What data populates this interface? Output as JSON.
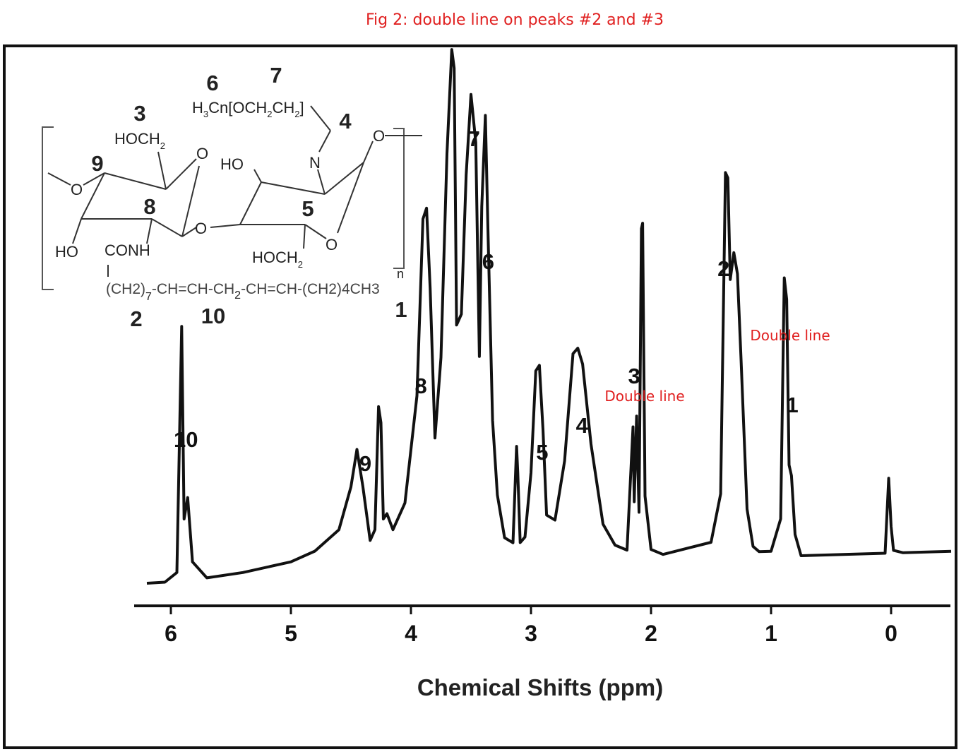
{
  "figure": {
    "title": "Fig 2: double line on peaks #2 and #3",
    "annotations": [
      {
        "text": "Double line",
        "near_peak": "3"
      },
      {
        "text": "Double line",
        "near_peak": "2"
      }
    ],
    "structure": {
      "labels": {
        "l6": "6",
        "l7": "7",
        "l3": "3",
        "l4": "4",
        "l9": "9",
        "l8": "8",
        "l5": "5",
        "l2": "2",
        "l10": "10",
        "l1": "1"
      },
      "texts": {
        "h3cn": "H",
        "h3cn_sub": "3",
        "cn_rest": "Cn[OCH",
        "sub2a": "2",
        "ch": "CH",
        "sub2b": "2",
        "bracket": "]",
        "hoch2_top": "HOCH",
        "hoch2_top_sub": "2",
        "o_ring1": "O",
        "ho_mid": "HO",
        "n_atom": "N",
        "o_end": "O",
        "o_left": "O",
        "ho_left": "HO",
        "conh": "CONH",
        "o_link": "O",
        "hoch2_bot": "HOCH",
        "hoch2_bot_sub": "2",
        "o_ring2": "O",
        "n_sub": "n",
        "chain_a": "(CH2)",
        "chain_sub7": "7",
        "chain_b": "-CH=CH-CH",
        "chain_sub2": "2",
        "chain_c": "-CH=CH-(CH2)4CH3"
      }
    }
  },
  "chart_data": {
    "type": "line",
    "title": "",
    "xlabel": "Chemical Shifts  (ppm)",
    "ylabel": "",
    "x_reversed": true,
    "xlim": [
      6.35,
      -0.5
    ],
    "ylim": [
      0,
      1.0
    ],
    "xticks": [
      6,
      5,
      4,
      3,
      2,
      1,
      0
    ],
    "xtick_labels": [
      "6",
      "5",
      "4",
      "3",
      "2",
      "1",
      "0"
    ],
    "grid": false,
    "legend": "none",
    "series": [
      {
        "x": [
          6.2,
          6.05,
          5.95,
          5.91,
          5.89,
          5.86,
          5.82,
          5.7,
          5.4,
          5.0,
          4.8,
          4.6,
          4.5,
          4.45,
          4.4,
          4.34,
          4.3,
          4.27,
          4.25,
          4.23,
          4.2,
          4.15,
          4.05,
          3.95,
          3.9,
          3.87,
          3.84,
          3.8,
          3.75,
          3.7,
          3.66,
          3.64,
          3.62,
          3.58,
          3.54,
          3.5,
          3.46,
          3.43,
          3.41,
          3.38,
          3.36,
          3.32,
          3.28,
          3.22,
          3.15,
          3.12,
          3.11,
          3.09,
          3.05,
          3.0,
          2.96,
          2.93,
          2.9,
          2.87,
          2.8,
          2.72,
          2.65,
          2.61,
          2.57,
          2.5,
          2.4,
          2.3,
          2.2,
          2.15,
          2.14,
          2.12,
          2.1,
          2.08,
          2.07,
          2.05,
          2.0,
          1.9,
          1.7,
          1.5,
          1.42,
          1.38,
          1.36,
          1.34,
          1.31,
          1.28,
          1.25,
          1.2,
          1.15,
          1.1,
          1.0,
          0.92,
          0.89,
          0.87,
          0.85,
          0.83,
          0.8,
          0.75,
          0.6,
          0.3,
          0.05,
          0.02,
          0.0,
          -0.02,
          -0.1,
          -0.3,
          -0.5
        ],
        "y": [
          0.0,
          0.002,
          0.02,
          0.48,
          0.12,
          0.16,
          0.04,
          0.01,
          0.02,
          0.04,
          0.06,
          0.1,
          0.18,
          0.25,
          0.18,
          0.08,
          0.1,
          0.33,
          0.3,
          0.12,
          0.13,
          0.1,
          0.15,
          0.35,
          0.68,
          0.7,
          0.55,
          0.27,
          0.42,
          0.8,
          0.995,
          0.96,
          0.48,
          0.5,
          0.76,
          0.91,
          0.82,
          0.42,
          0.7,
          0.87,
          0.67,
          0.3,
          0.16,
          0.08,
          0.07,
          0.25,
          0.2,
          0.07,
          0.08,
          0.2,
          0.39,
          0.4,
          0.28,
          0.12,
          0.11,
          0.22,
          0.42,
          0.43,
          0.4,
          0.25,
          0.1,
          0.06,
          0.05,
          0.28,
          0.14,
          0.3,
          0.12,
          0.65,
          0.66,
          0.15,
          0.05,
          0.04,
          0.05,
          0.06,
          0.15,
          0.75,
          0.74,
          0.55,
          0.6,
          0.56,
          0.4,
          0.12,
          0.05,
          0.04,
          0.04,
          0.1,
          0.55,
          0.51,
          0.2,
          0.18,
          0.07,
          0.03,
          0.03,
          0.03,
          0.03,
          0.17,
          0.08,
          0.035,
          0.03,
          0.03,
          0.03
        ]
      }
    ],
    "peak_labels": [
      {
        "label": "10",
        "x": 5.91
      },
      {
        "label": "9",
        "x": 4.45
      },
      {
        "label": "8",
        "x": 3.87
      },
      {
        "label": "7",
        "x": 3.64
      },
      {
        "label": "6",
        "x": 3.38
      },
      {
        "label": "5",
        "x": 2.93
      },
      {
        "label": "4",
        "x": 2.61
      },
      {
        "label": "3",
        "x": 2.07
      },
      {
        "label": "2",
        "x": 1.36
      },
      {
        "label": "1",
        "x": 0.87
      }
    ]
  }
}
